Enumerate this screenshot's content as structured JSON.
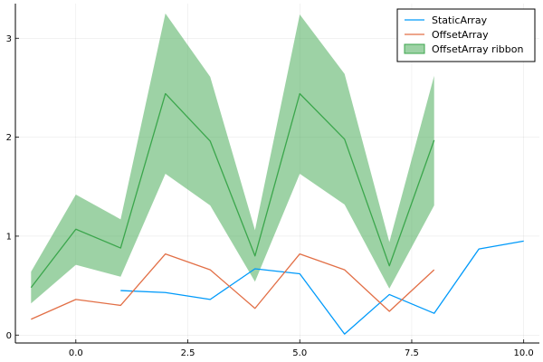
{
  "chart_data": {
    "type": "line",
    "title": "",
    "xlabel": "",
    "ylabel": "",
    "xlim": [
      -1.35,
      10.35
    ],
    "ylim": [
      -0.08,
      3.35
    ],
    "x_ticks": [
      0,
      2.5,
      5,
      7.5,
      10
    ],
    "x_tick_labels": [
      "0.0",
      "2.5",
      "5.0",
      "7.5",
      "10.0"
    ],
    "y_ticks": [
      0,
      1,
      2,
      3
    ],
    "y_tick_labels": [
      "0",
      "1",
      "2",
      "3"
    ],
    "grid": true,
    "legend_position": "top-right",
    "series": [
      {
        "name": "StaticArray",
        "kind": "line",
        "color": "#009AFA",
        "x": [
          1,
          2,
          3,
          4,
          5,
          6,
          7,
          8,
          9,
          10
        ],
        "y": [
          0.45,
          0.43,
          0.36,
          0.67,
          0.62,
          0.01,
          0.41,
          0.22,
          0.87,
          0.95
        ]
      },
      {
        "name": "OffsetArray",
        "kind": "line",
        "color": "#E26F46",
        "x": [
          -1,
          0,
          1,
          2,
          3,
          4,
          5,
          6,
          7,
          8
        ],
        "y": [
          0.16,
          0.36,
          0.3,
          0.82,
          0.66,
          0.27,
          0.82,
          0.66,
          0.24,
          0.66
        ]
      },
      {
        "name": "",
        "kind": "line",
        "color": "#3BA64C",
        "x": [
          -1,
          0,
          1,
          2,
          3,
          4,
          5,
          6,
          7,
          8
        ],
        "y": [
          0.48,
          1.07,
          0.88,
          2.44,
          1.96,
          0.8,
          2.44,
          1.98,
          0.7,
          1.97
        ]
      },
      {
        "name": "OffsetArray ribbon",
        "kind": "ribbon",
        "color": "#3BA64C",
        "opacity": 0.5,
        "x": [
          -1,
          0,
          1,
          2,
          3,
          4,
          5,
          6,
          7,
          8
        ],
        "lower": [
          0.32,
          0.71,
          0.59,
          1.63,
          1.31,
          0.54,
          1.63,
          1.32,
          0.47,
          1.31
        ],
        "upper": [
          0.64,
          1.42,
          1.17,
          3.25,
          2.61,
          1.06,
          3.24,
          2.64,
          0.94,
          2.62
        ]
      }
    ],
    "legend": [
      "StaticArray",
      "OffsetArray",
      "OffsetArray ribbon"
    ]
  }
}
